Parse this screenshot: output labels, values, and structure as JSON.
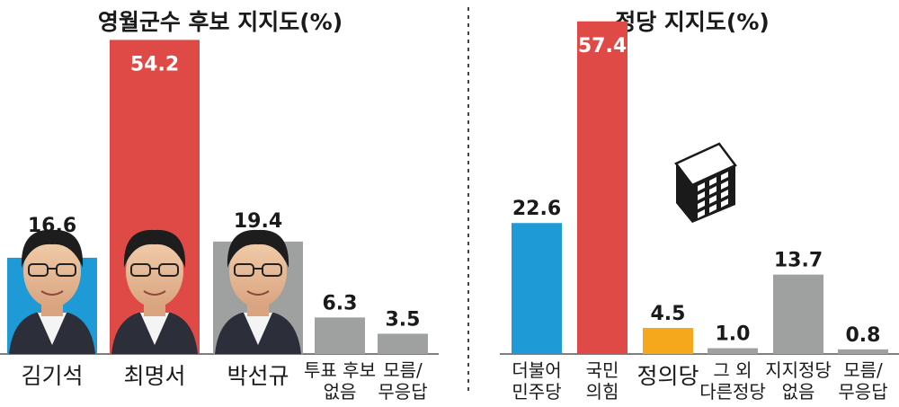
{
  "chart_data": [
    {
      "type": "bar",
      "title": "영월군수 후보 지지도(%)",
      "categories": [
        "김기석",
        "최명서",
        "박선규",
        "투표 후보|없음",
        "모름/|무응답"
      ],
      "values": [
        16.6,
        54.2,
        19.4,
        6.3,
        3.5
      ],
      "colors": [
        "#1e9ad6",
        "#e04a46",
        "#9fa0a0",
        "#9fa0a0",
        "#9fa0a0"
      ],
      "ylim": [
        0,
        60
      ],
      "grid": false,
      "photo_icons": [
        "candidate-photo",
        "candidate-photo",
        "candidate-photo",
        "",
        ""
      ]
    },
    {
      "type": "bar",
      "title": "정당 지지도(%)",
      "categories": [
        "더불어|민주당",
        "국민|의힘",
        "정의당",
        "그 외|다른정당",
        "지지정당|없음",
        "모름/|무응답"
      ],
      "values": [
        22.6,
        57.4,
        4.5,
        1.0,
        13.7,
        0.8
      ],
      "colors": [
        "#1e9ad6",
        "#e04a46",
        "#f5a81c",
        "#9fa0a0",
        "#9fa0a0",
        "#9fa0a0"
      ],
      "ylim": [
        0,
        60
      ],
      "grid": false
    }
  ],
  "decor": {
    "building_icon": "building-icon",
    "divider_color": "#444444"
  }
}
